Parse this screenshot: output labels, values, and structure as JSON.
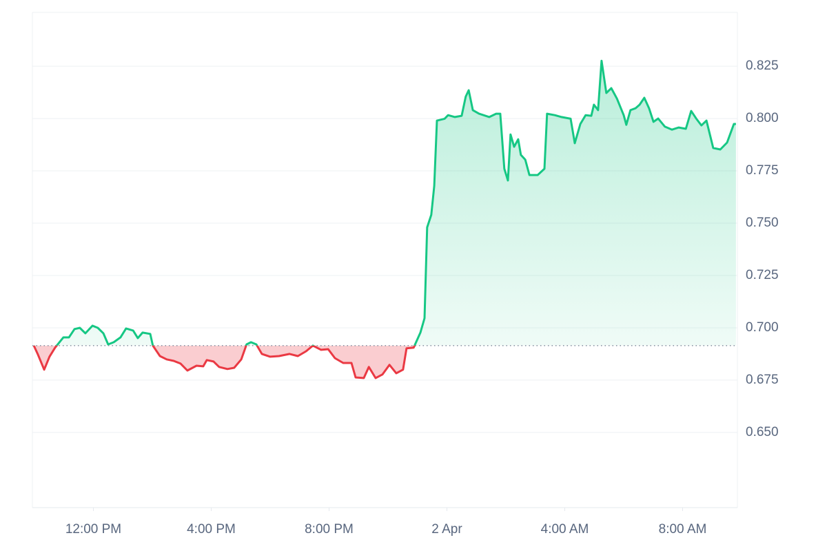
{
  "chart_data": {
    "type": "line",
    "x": [
      9.98,
      10.12,
      10.33,
      10.51,
      10.7,
      10.98,
      11.17,
      11.36,
      11.54,
      11.73,
      11.97,
      12.15,
      12.34,
      12.5,
      12.69,
      12.92,
      13.11,
      13.35,
      13.51,
      13.67,
      13.93,
      14.02,
      14.26,
      14.49,
      14.73,
      14.96,
      15.19,
      15.5,
      15.73,
      15.85,
      16.08,
      16.27,
      16.55,
      16.78,
      17.02,
      17.2,
      17.35,
      17.53,
      17.72,
      18.0,
      18.3,
      18.66,
      18.94,
      19.22,
      19.45,
      19.73,
      19.97,
      20.2,
      20.48,
      20.76,
      20.9,
      21.18,
      21.35,
      21.58,
      21.81,
      22.05,
      22.28,
      22.51,
      22.63,
      22.87,
      23.1,
      23.24,
      23.33,
      23.47,
      23.57,
      23.66,
      23.92,
      24.04,
      24.27,
      24.5,
      24.64,
      24.74,
      24.88,
      25.09,
      25.44,
      25.67,
      25.81,
      25.95,
      26.07,
      26.16,
      26.28,
      26.42,
      26.51,
      26.66,
      26.8,
      27.08,
      27.31,
      27.4,
      27.66,
      27.89,
      28.2,
      28.34,
      28.53,
      28.71,
      28.9,
      28.99,
      29.13,
      29.25,
      29.41,
      29.58,
      29.77,
      30.0,
      30.09,
      30.23,
      30.4,
      30.54,
      30.7,
      30.86,
      31.01,
      31.17,
      31.4,
      31.64,
      31.87,
      32.11,
      32.29,
      32.46,
      32.64,
      32.81,
      33.04,
      33.28,
      33.51,
      33.74,
      33.81
    ],
    "values": [
      0.6915,
      0.6872,
      0.68,
      0.6862,
      0.6905,
      0.6954,
      0.6954,
      0.6994,
      0.7,
      0.6974,
      0.701,
      0.7,
      0.6974,
      0.6921,
      0.6931,
      0.6954,
      0.6997,
      0.6987,
      0.6951,
      0.6977,
      0.6971,
      0.6915,
      0.6865,
      0.6849,
      0.6842,
      0.6829,
      0.6796,
      0.6819,
      0.6816,
      0.6846,
      0.6839,
      0.6813,
      0.6803,
      0.6809,
      0.6849,
      0.6921,
      0.6931,
      0.6921,
      0.6875,
      0.6862,
      0.6865,
      0.6875,
      0.6865,
      0.6888,
      0.6915,
      0.6895,
      0.6898,
      0.6855,
      0.6832,
      0.6832,
      0.6763,
      0.676,
      0.6813,
      0.676,
      0.6777,
      0.6823,
      0.6783,
      0.68,
      0.6902,
      0.6905,
      0.6977,
      0.7046,
      0.748,
      0.754,
      0.7678,
      0.799,
      0.7999,
      0.8016,
      0.8007,
      0.8013,
      0.8105,
      0.8135,
      0.804,
      0.8023,
      0.8007,
      0.8023,
      0.8023,
      0.776,
      0.7704,
      0.7924,
      0.7865,
      0.7901,
      0.7826,
      0.7803,
      0.773,
      0.773,
      0.776,
      0.8023,
      0.8016,
      0.8007,
      0.7999,
      0.7882,
      0.7974,
      0.8016,
      0.8013,
      0.8066,
      0.804,
      0.8276,
      0.8122,
      0.8145,
      0.8095,
      0.8016,
      0.797,
      0.804,
      0.8049,
      0.8066,
      0.8099,
      0.8049,
      0.7984,
      0.8,
      0.7961,
      0.7947,
      0.7957,
      0.7951,
      0.8036,
      0.8,
      0.7967,
      0.799,
      0.7859,
      0.7852,
      0.7885,
      0.7974,
      0.7974
    ],
    "baseline": 0.6915,
    "up_color": "#16c784",
    "down_color": "#ea3943",
    "xlim": [
      9.93,
      33.86
    ],
    "xticks": [
      {
        "value": 12,
        "label": "12:00 PM"
      },
      {
        "value": 16,
        "label": "4:00 PM"
      },
      {
        "value": 20,
        "label": "8:00 PM"
      },
      {
        "value": 24,
        "label": "2 Apr"
      },
      {
        "value": 28,
        "label": "4:00 AM"
      },
      {
        "value": 32,
        "label": "8:00 AM"
      }
    ],
    "ylim": [
      0.6141,
      0.8507
    ],
    "yticks": [
      {
        "value": 0.65,
        "label": "0.650"
      },
      0.675,
      {
        "value": 0.7,
        "label": "0.700"
      },
      0.725,
      {
        "value": 0.75,
        "label": "0.750"
      },
      0.775,
      {
        "value": 0.8,
        "label": "0.800"
      },
      0.825
    ],
    "grid": true
  }
}
